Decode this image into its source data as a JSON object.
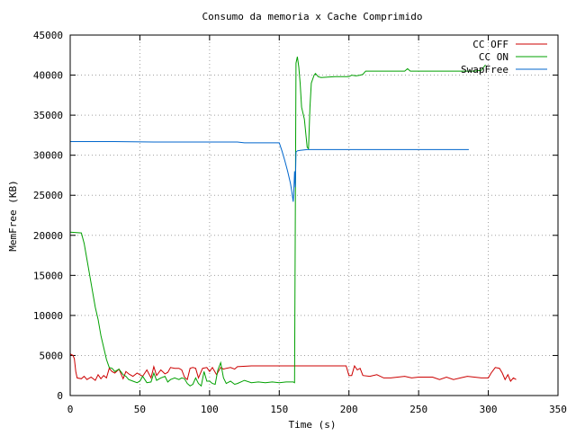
{
  "chart_data": {
    "type": "line",
    "title": "Consumo da memoria x Cache Comprimido",
    "xlabel": "Time (s)",
    "ylabel": "MemFree (KB)",
    "xlim": [
      0,
      350
    ],
    "ylim": [
      0,
      45000
    ],
    "x_ticks": [
      "0",
      "50",
      "100",
      "150",
      "200",
      "250",
      "300",
      "350"
    ],
    "y_ticks": [
      "0",
      "5000",
      "10000",
      "15000",
      "20000",
      "25000",
      "30000",
      "35000",
      "40000",
      "45000"
    ],
    "grid": true,
    "legend_position": "top-right",
    "series": [
      {
        "name": "CC OFF",
        "color": "#cc0000",
        "points": [
          [
            0,
            5200
          ],
          [
            2,
            5000
          ],
          [
            3,
            4600
          ],
          [
            4,
            3000
          ],
          [
            5,
            2200
          ],
          [
            8,
            2100
          ],
          [
            10,
            2400
          ],
          [
            12,
            2000
          ],
          [
            15,
            2300
          ],
          [
            18,
            1900
          ],
          [
            20,
            2600
          ],
          [
            22,
            2100
          ],
          [
            24,
            2500
          ],
          [
            26,
            2200
          ],
          [
            28,
            3400
          ],
          [
            30,
            3000
          ],
          [
            32,
            2800
          ],
          [
            35,
            3300
          ],
          [
            38,
            2100
          ],
          [
            40,
            3000
          ],
          [
            42,
            2700
          ],
          [
            45,
            2400
          ],
          [
            48,
            2800
          ],
          [
            50,
            2600
          ],
          [
            52,
            2400
          ],
          [
            55,
            3200
          ],
          [
            58,
            2200
          ],
          [
            60,
            3600
          ],
          [
            62,
            2500
          ],
          [
            65,
            3200
          ],
          [
            68,
            2700
          ],
          [
            70,
            2900
          ],
          [
            72,
            3500
          ],
          [
            75,
            3400
          ],
          [
            78,
            3400
          ],
          [
            80,
            3200
          ],
          [
            82,
            2300
          ],
          [
            84,
            2000
          ],
          [
            86,
            3400
          ],
          [
            88,
            3500
          ],
          [
            90,
            3400
          ],
          [
            92,
            2200
          ],
          [
            95,
            3400
          ],
          [
            98,
            3500
          ],
          [
            100,
            3000
          ],
          [
            102,
            3500
          ],
          [
            105,
            2600
          ],
          [
            108,
            3500
          ],
          [
            110,
            3300
          ],
          [
            112,
            3400
          ],
          [
            115,
            3500
          ],
          [
            118,
            3300
          ],
          [
            120,
            3600
          ],
          [
            130,
            3700
          ],
          [
            140,
            3700
          ],
          [
            150,
            3700
          ],
          [
            155,
            3700
          ],
          [
            160,
            3700
          ],
          [
            165,
            3700
          ],
          [
            170,
            3700
          ],
          [
            180,
            3700
          ],
          [
            190,
            3700
          ],
          [
            198,
            3700
          ],
          [
            200,
            2500
          ],
          [
            202,
            2500
          ],
          [
            204,
            3700
          ],
          [
            206,
            3200
          ],
          [
            208,
            3400
          ],
          [
            210,
            2500
          ],
          [
            215,
            2400
          ],
          [
            220,
            2600
          ],
          [
            225,
            2200
          ],
          [
            230,
            2200
          ],
          [
            235,
            2300
          ],
          [
            240,
            2400
          ],
          [
            245,
            2200
          ],
          [
            250,
            2300
          ],
          [
            260,
            2300
          ],
          [
            265,
            2000
          ],
          [
            270,
            2300
          ],
          [
            275,
            2000
          ],
          [
            280,
            2200
          ],
          [
            285,
            2400
          ],
          [
            290,
            2300
          ],
          [
            295,
            2200
          ],
          [
            300,
            2200
          ],
          [
            302,
            2800
          ],
          [
            305,
            3500
          ],
          [
            308,
            3400
          ],
          [
            310,
            2800
          ],
          [
            312,
            2000
          ],
          [
            314,
            2600
          ],
          [
            316,
            1800
          ],
          [
            318,
            2200
          ],
          [
            320,
            2000
          ]
        ]
      },
      {
        "name": "CC ON",
        "color": "#00a000",
        "points": [
          [
            0,
            20400
          ],
          [
            8,
            20300
          ],
          [
            10,
            19000
          ],
          [
            12,
            17000
          ],
          [
            14,
            15000
          ],
          [
            16,
            13000
          ],
          [
            18,
            11000
          ],
          [
            20,
            9500
          ],
          [
            22,
            7500
          ],
          [
            24,
            6000
          ],
          [
            26,
            4500
          ],
          [
            28,
            3500
          ],
          [
            30,
            3400
          ],
          [
            32,
            3000
          ],
          [
            35,
            3300
          ],
          [
            38,
            2600
          ],
          [
            40,
            2400
          ],
          [
            42,
            2000
          ],
          [
            45,
            1800
          ],
          [
            48,
            1600
          ],
          [
            50,
            1800
          ],
          [
            52,
            2400
          ],
          [
            55,
            1600
          ],
          [
            58,
            1700
          ],
          [
            60,
            2800
          ],
          [
            62,
            1900
          ],
          [
            65,
            2200
          ],
          [
            68,
            2400
          ],
          [
            70,
            1700
          ],
          [
            72,
            2000
          ],
          [
            75,
            2200
          ],
          [
            78,
            2000
          ],
          [
            80,
            2200
          ],
          [
            82,
            2100
          ],
          [
            84,
            1500
          ],
          [
            86,
            1200
          ],
          [
            88,
            1400
          ],
          [
            90,
            2200
          ],
          [
            92,
            1500
          ],
          [
            94,
            1200
          ],
          [
            96,
            3000
          ],
          [
            98,
            1800
          ],
          [
            100,
            1800
          ],
          [
            102,
            1500
          ],
          [
            104,
            1400
          ],
          [
            106,
            3200
          ],
          [
            108,
            4100
          ],
          [
            110,
            2200
          ],
          [
            112,
            1500
          ],
          [
            115,
            1800
          ],
          [
            118,
            1400
          ],
          [
            120,
            1500
          ],
          [
            125,
            1900
          ],
          [
            130,
            1600
          ],
          [
            135,
            1700
          ],
          [
            140,
            1600
          ],
          [
            145,
            1700
          ],
          [
            150,
            1600
          ],
          [
            155,
            1700
          ],
          [
            160,
            1700
          ],
          [
            161,
            1600
          ],
          [
            162,
            41500
          ],
          [
            163,
            42300
          ],
          [
            164,
            41000
          ],
          [
            165,
            39000
          ],
          [
            166,
            36000
          ],
          [
            168,
            34500
          ],
          [
            170,
            31000
          ],
          [
            171,
            30800
          ],
          [
            172,
            36000
          ],
          [
            173,
            39000
          ],
          [
            175,
            40000
          ],
          [
            176,
            40200
          ],
          [
            178,
            39800
          ],
          [
            180,
            39700
          ],
          [
            190,
            39800
          ],
          [
            200,
            39800
          ],
          [
            202,
            40000
          ],
          [
            205,
            39900
          ],
          [
            208,
            40000
          ],
          [
            210,
            40100
          ],
          [
            212,
            40500
          ],
          [
            220,
            40500
          ],
          [
            230,
            40500
          ],
          [
            240,
            40500
          ],
          [
            242,
            40800
          ],
          [
            244,
            40500
          ],
          [
            250,
            40500
          ],
          [
            260,
            40500
          ],
          [
            270,
            40500
          ],
          [
            280,
            40500
          ],
          [
            285,
            40500
          ],
          [
            290,
            40500
          ],
          [
            295,
            40600
          ],
          [
            298,
            41300
          ]
        ]
      },
      {
        "name": "SwapFree",
        "color": "#0066cc",
        "points": [
          [
            0,
            31700
          ],
          [
            30,
            31700
          ],
          [
            60,
            31650
          ],
          [
            90,
            31650
          ],
          [
            120,
            31650
          ],
          [
            125,
            31550
          ],
          [
            140,
            31550
          ],
          [
            150,
            31550
          ],
          [
            152,
            30500
          ],
          [
            154,
            29300
          ],
          [
            156,
            28000
          ],
          [
            158,
            26500
          ],
          [
            159,
            25500
          ],
          [
            160,
            24200
          ],
          [
            160.5,
            25500
          ],
          [
            161,
            28000
          ],
          [
            161.5,
            26000
          ],
          [
            162,
            30400
          ],
          [
            163,
            30550
          ],
          [
            165,
            30600
          ],
          [
            170,
            30700
          ],
          [
            200,
            30700
          ],
          [
            250,
            30700
          ],
          [
            286,
            30700
          ]
        ]
      }
    ]
  }
}
